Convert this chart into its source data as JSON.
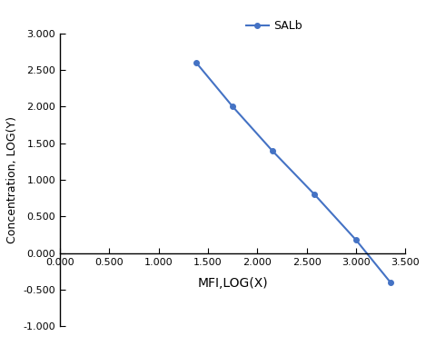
{
  "x": [
    1.38,
    1.75,
    2.15,
    2.58,
    3.0,
    3.35
  ],
  "y": [
    2.6,
    2.0,
    1.4,
    0.8,
    0.18,
    -0.4
  ],
  "line_color": "#4472C4",
  "marker": "o",
  "marker_size": 4,
  "legend_label": "SALb",
  "xlabel": "MFI,LOG(X)",
  "ylabel": "Concentration, LOG(Y)",
  "xlim": [
    0.0,
    3.5
  ],
  "ylim": [
    -1.0,
    3.0
  ],
  "xticks": [
    0.0,
    0.5,
    1.0,
    1.5,
    2.0,
    2.5,
    3.0,
    3.5
  ],
  "yticks": [
    -1.0,
    -0.5,
    0.0,
    0.5,
    1.0,
    1.5,
    2.0,
    2.5,
    3.0
  ],
  "xlabel_fontsize": 10,
  "ylabel_fontsize": 9,
  "tick_fontsize": 8,
  "legend_fontsize": 9,
  "background_color": "#ffffff"
}
